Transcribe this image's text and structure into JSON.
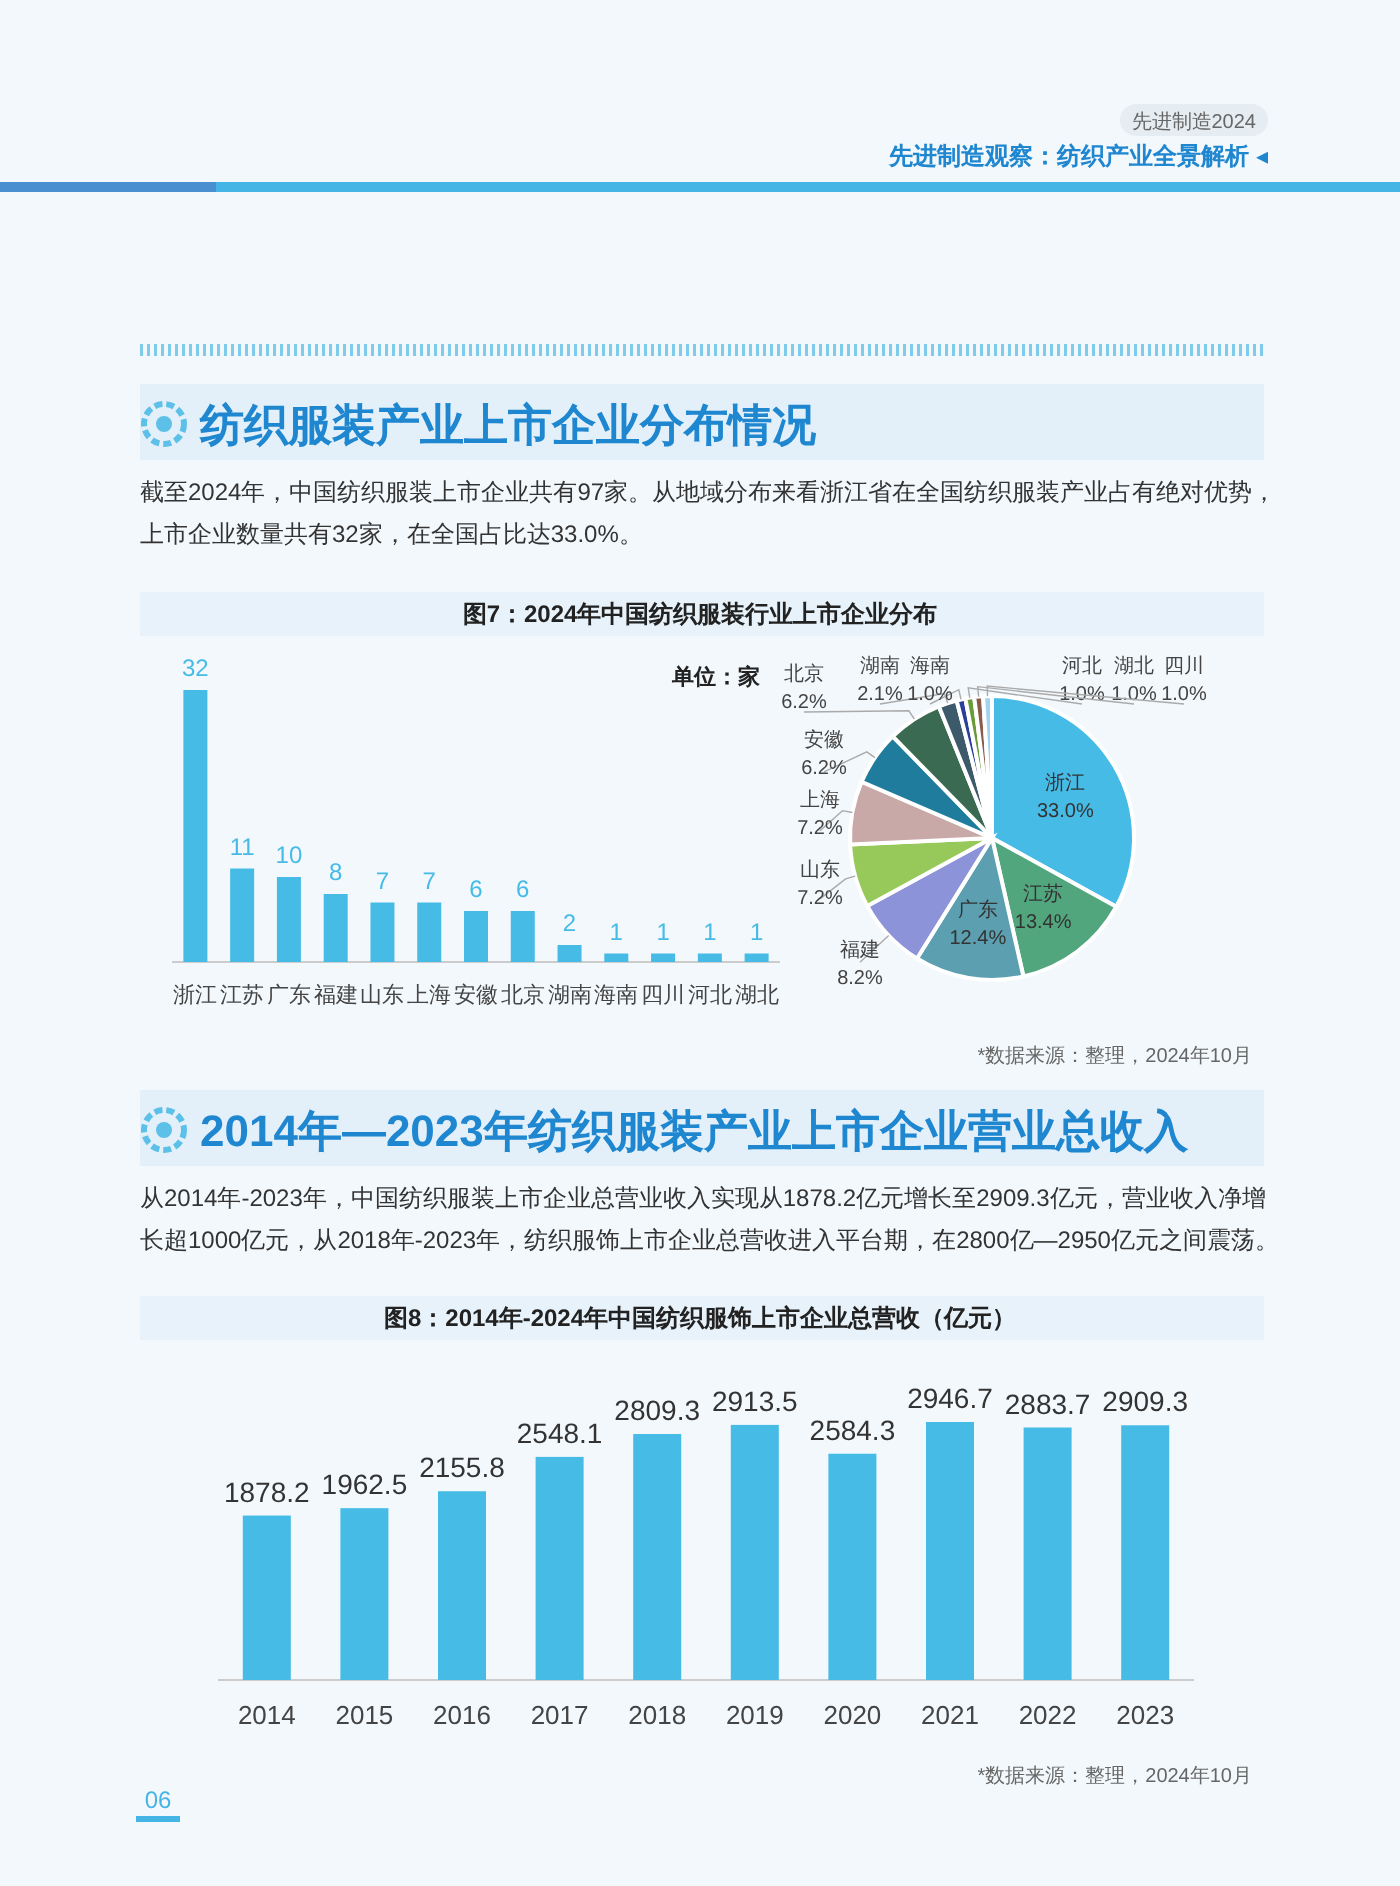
{
  "chart_data": [
    {
      "type": "other",
      "title": "纺织服装产业上市企业分布情况",
      "annotations": [
        "先进制造2024",
        "先进制造观察：纺织产业全景解析 ◂",
        "截至2024年，中国纺织服装上市企业共有97家。从地域分布来看浙江省在全国纺织服装产业占有绝对优势，上市企业数量共有32家，在全国占比达33.0%。"
      ]
    },
    {
      "type": "bar",
      "title": "图7：2024年中国纺织服装行业上市企业分布",
      "annotations": [
        "单位：家"
      ],
      "categories": [
        "浙江",
        "江苏",
        "广东",
        "福建",
        "山东",
        "上海",
        "安徽",
        "北京",
        "湖南",
        "海南",
        "四川",
        "河北",
        "湖北"
      ],
      "values": [
        32,
        11,
        10,
        8,
        7,
        7,
        6,
        6,
        2,
        1,
        1,
        1,
        1
      ],
      "color": "#45bbe6",
      "data_labels": true
    },
    {
      "type": "pie",
      "categories": [
        "浙江",
        "江苏",
        "广东",
        "福建",
        "山东",
        "上海",
        "安徽",
        "北京",
        "湖南",
        "海南",
        "河北",
        "湖北",
        "四川"
      ],
      "values": [
        33.0,
        13.4,
        12.4,
        8.2,
        7.2,
        7.2,
        6.2,
        6.2,
        2.1,
        1.0,
        1.0,
        1.0,
        1.0
      ],
      "value_labels": [
        "33.0%",
        "13.4%",
        "12.4%",
        "8.2%",
        "7.2%",
        "7.2%",
        "6.2%",
        "6.2%",
        "2.1%",
        "1.0%",
        "1.0%",
        "1.0%",
        "1.0%"
      ],
      "colors": [
        "#45bbe6",
        "#52a67e",
        "#5b9fb0",
        "#8d93d8",
        "#96c95a",
        "#c9a9a8",
        "#1f7c9c",
        "#3a6b52",
        "#3d5a6a",
        "#2a3f9a",
        "#6b9a3a",
        "#8a5a4a",
        "#a0d4f0"
      ],
      "annotations": [
        "*数据来源：整理，2024年10月"
      ]
    },
    {
      "type": "other",
      "title": "2014年—2023年纺织服装产业上市企业营业总收入",
      "annotations": [
        "从2014年-2023年，中国纺织服装上市企业总营业收入实现从1878.2亿元增长至2909.3亿元，营业收入净增长超1000亿元，从2018年-2023年，纺织服饰上市企业总营收进入平台期，在2800亿—2950亿元之间震荡。"
      ]
    },
    {
      "type": "bar",
      "title": "图8：2014年-2024年中国纺织服饰上市企业总营收（亿元）",
      "categories": [
        "2014",
        "2015",
        "2016",
        "2017",
        "2018",
        "2019",
        "2020",
        "2021",
        "2022",
        "2023"
      ],
      "values": [
        1878.2,
        1962.5,
        2155.8,
        2548.1,
        2809.3,
        2913.5,
        2584.3,
        2946.7,
        2883.7,
        2909.3
      ],
      "color": "#45bbe6",
      "data_labels": true,
      "annotations": [
        "*数据来源：整理，2024年10月",
        "06"
      ]
    }
  ]
}
